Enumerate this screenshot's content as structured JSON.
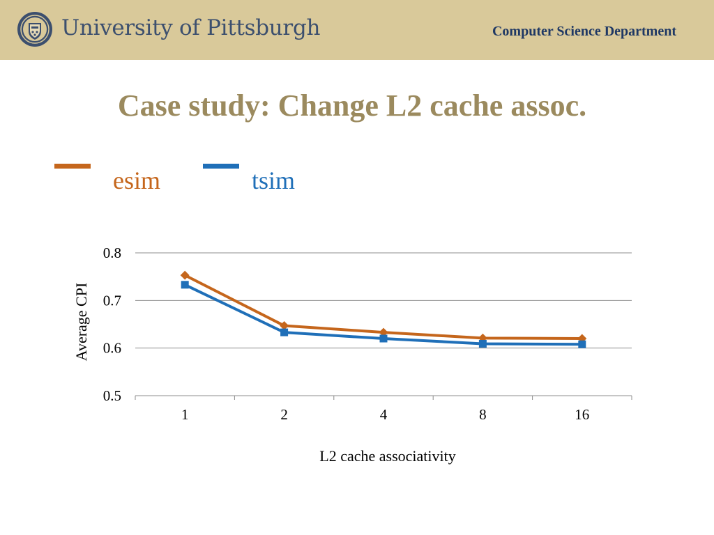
{
  "header": {
    "university": "University of Pittsburgh",
    "department": "Computer Science Department"
  },
  "slide": {
    "title": "Case study: Change L2 cache assoc."
  },
  "colors": {
    "header_bg": "#d9c99a",
    "title": "#9b8a5e",
    "esim": "#c5661c",
    "tsim": "#1f6fb8"
  },
  "chart_data": {
    "type": "line",
    "categories": [
      "1",
      "2",
      "4",
      "8",
      "16"
    ],
    "series": [
      {
        "name": "esim",
        "marker": "diamond",
        "color": "#c5661c",
        "values": [
          0.753,
          0.647,
          0.633,
          0.621,
          0.62
        ]
      },
      {
        "name": "tsim",
        "marker": "square",
        "color": "#1f6fb8",
        "values": [
          0.733,
          0.633,
          0.62,
          0.609,
          0.608
        ]
      }
    ],
    "title": "",
    "xlabel": "L2 cache associativity",
    "ylabel": "Average CPI",
    "ylim": [
      0.5,
      0.8
    ],
    "yticks": [
      "0.5",
      "0.6",
      "0.7",
      "0.8"
    ],
    "grid": "horizontal",
    "legend": "top-left"
  }
}
